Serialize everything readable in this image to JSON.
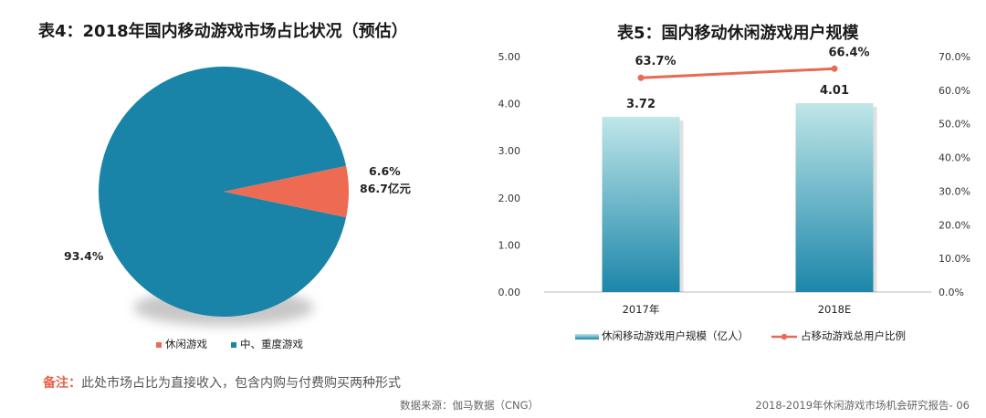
{
  "left": {
    "title": "表4：2018年国内移动游戏市场占比状况（预估）"
  },
  "right": {
    "title": "表5：国内移动休闲游戏用户规模"
  },
  "colors": {
    "pie_casual": "#ee6b53",
    "pie_hardcore": "#1a84a8",
    "bar_top": "#bfe6e8",
    "bar_bottom": "#1c86aa",
    "line": "#e86a54",
    "note_label": "#e8614a"
  },
  "chart_data": [
    {
      "type": "pie",
      "title": "表4：2018年国内移动游戏市场占比状况（预估）",
      "slices": [
        {
          "name": "休闲游戏",
          "value": 6.6,
          "label": "6.6%",
          "sublabel": "86.7亿元"
        },
        {
          "name": "中、重度游戏",
          "value": 93.4,
          "label": "93.4%"
        }
      ],
      "legend": [
        "休闲游戏",
        "中、重度游戏"
      ],
      "legend_position": "bottom"
    },
    {
      "type": "bar",
      "title": "表5：国内移动休闲游戏用户规模",
      "categories": [
        "2017年",
        "2018E"
      ],
      "series": [
        {
          "name": "休闲移动游戏用户规模（亿人）",
          "type": "bar",
          "axis": "left",
          "values": [
            3.72,
            4.01
          ],
          "labels": [
            "3.72",
            "4.01"
          ]
        },
        {
          "name": "占移动游戏总用户比例",
          "type": "line",
          "axis": "right",
          "values": [
            63.7,
            66.4
          ],
          "labels": [
            "63.7%",
            "66.4%"
          ]
        }
      ],
      "y_left": {
        "range": [
          0,
          5
        ],
        "ticks": [
          "0.00",
          "1.00",
          "2.00",
          "3.00",
          "4.00",
          "5.00"
        ]
      },
      "y_right": {
        "range": [
          0,
          70
        ],
        "ticks": [
          "0.0%",
          "10.0%",
          "20.0%",
          "30.0%",
          "40.0%",
          "50.0%",
          "60.0%",
          "70.0%"
        ]
      },
      "legend_position": "bottom",
      "grid": false
    }
  ],
  "note": {
    "label": "备注：",
    "text": "此处市场占比为直接收入，包含内购与付费购买两种形式"
  },
  "footer": {
    "source": "数据来源：伽马数据（CNG）",
    "report": "2018-2019年休闲游戏市场机会研究报告- 06"
  }
}
